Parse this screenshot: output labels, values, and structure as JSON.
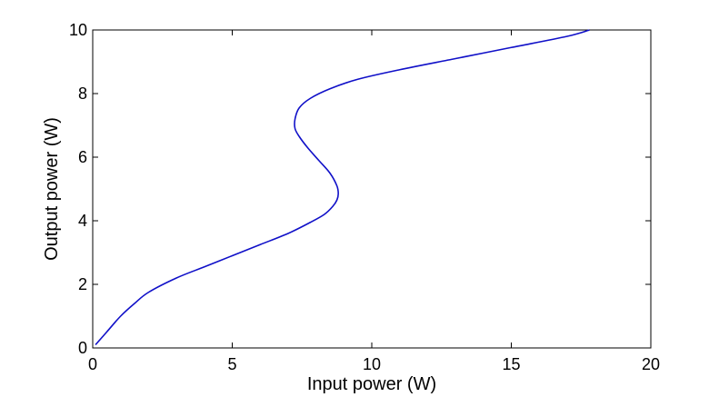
{
  "chart_data": {
    "type": "line",
    "title": "",
    "xlabel": "Input power (W)",
    "ylabel": "Output power (W)",
    "xlim": [
      0,
      20
    ],
    "ylim": [
      0,
      10
    ],
    "xticks": [
      0,
      5,
      10,
      15,
      20
    ],
    "yticks": [
      0,
      2,
      4,
      6,
      8,
      10
    ],
    "xtick_labels": [
      "0",
      "5",
      "10",
      "15",
      "20"
    ],
    "ytick_labels": [
      "0",
      "2",
      "4",
      "6",
      "8",
      "10"
    ],
    "grid": false,
    "legend": "none",
    "series": [
      {
        "color": "#1010c8",
        "x": [
          0.1,
          0.5,
          1.0,
          1.5,
          2.0,
          3.0,
          4.0,
          5.0,
          6.0,
          7.0,
          7.8,
          8.3,
          8.6,
          8.75,
          8.8,
          8.75,
          8.5,
          8.1,
          7.7,
          7.4,
          7.25,
          7.25,
          7.4,
          7.8,
          8.5,
          9.5,
          11.0,
          13.0,
          15.0,
          17.0,
          17.8
        ],
        "y": [
          0.1,
          0.5,
          1.0,
          1.4,
          1.75,
          2.2,
          2.55,
          2.9,
          3.25,
          3.6,
          3.95,
          4.2,
          4.45,
          4.65,
          4.85,
          5.1,
          5.5,
          5.9,
          6.3,
          6.65,
          6.9,
          7.2,
          7.55,
          7.85,
          8.15,
          8.45,
          8.75,
          9.1,
          9.45,
          9.8,
          10.0
        ]
      }
    ]
  }
}
